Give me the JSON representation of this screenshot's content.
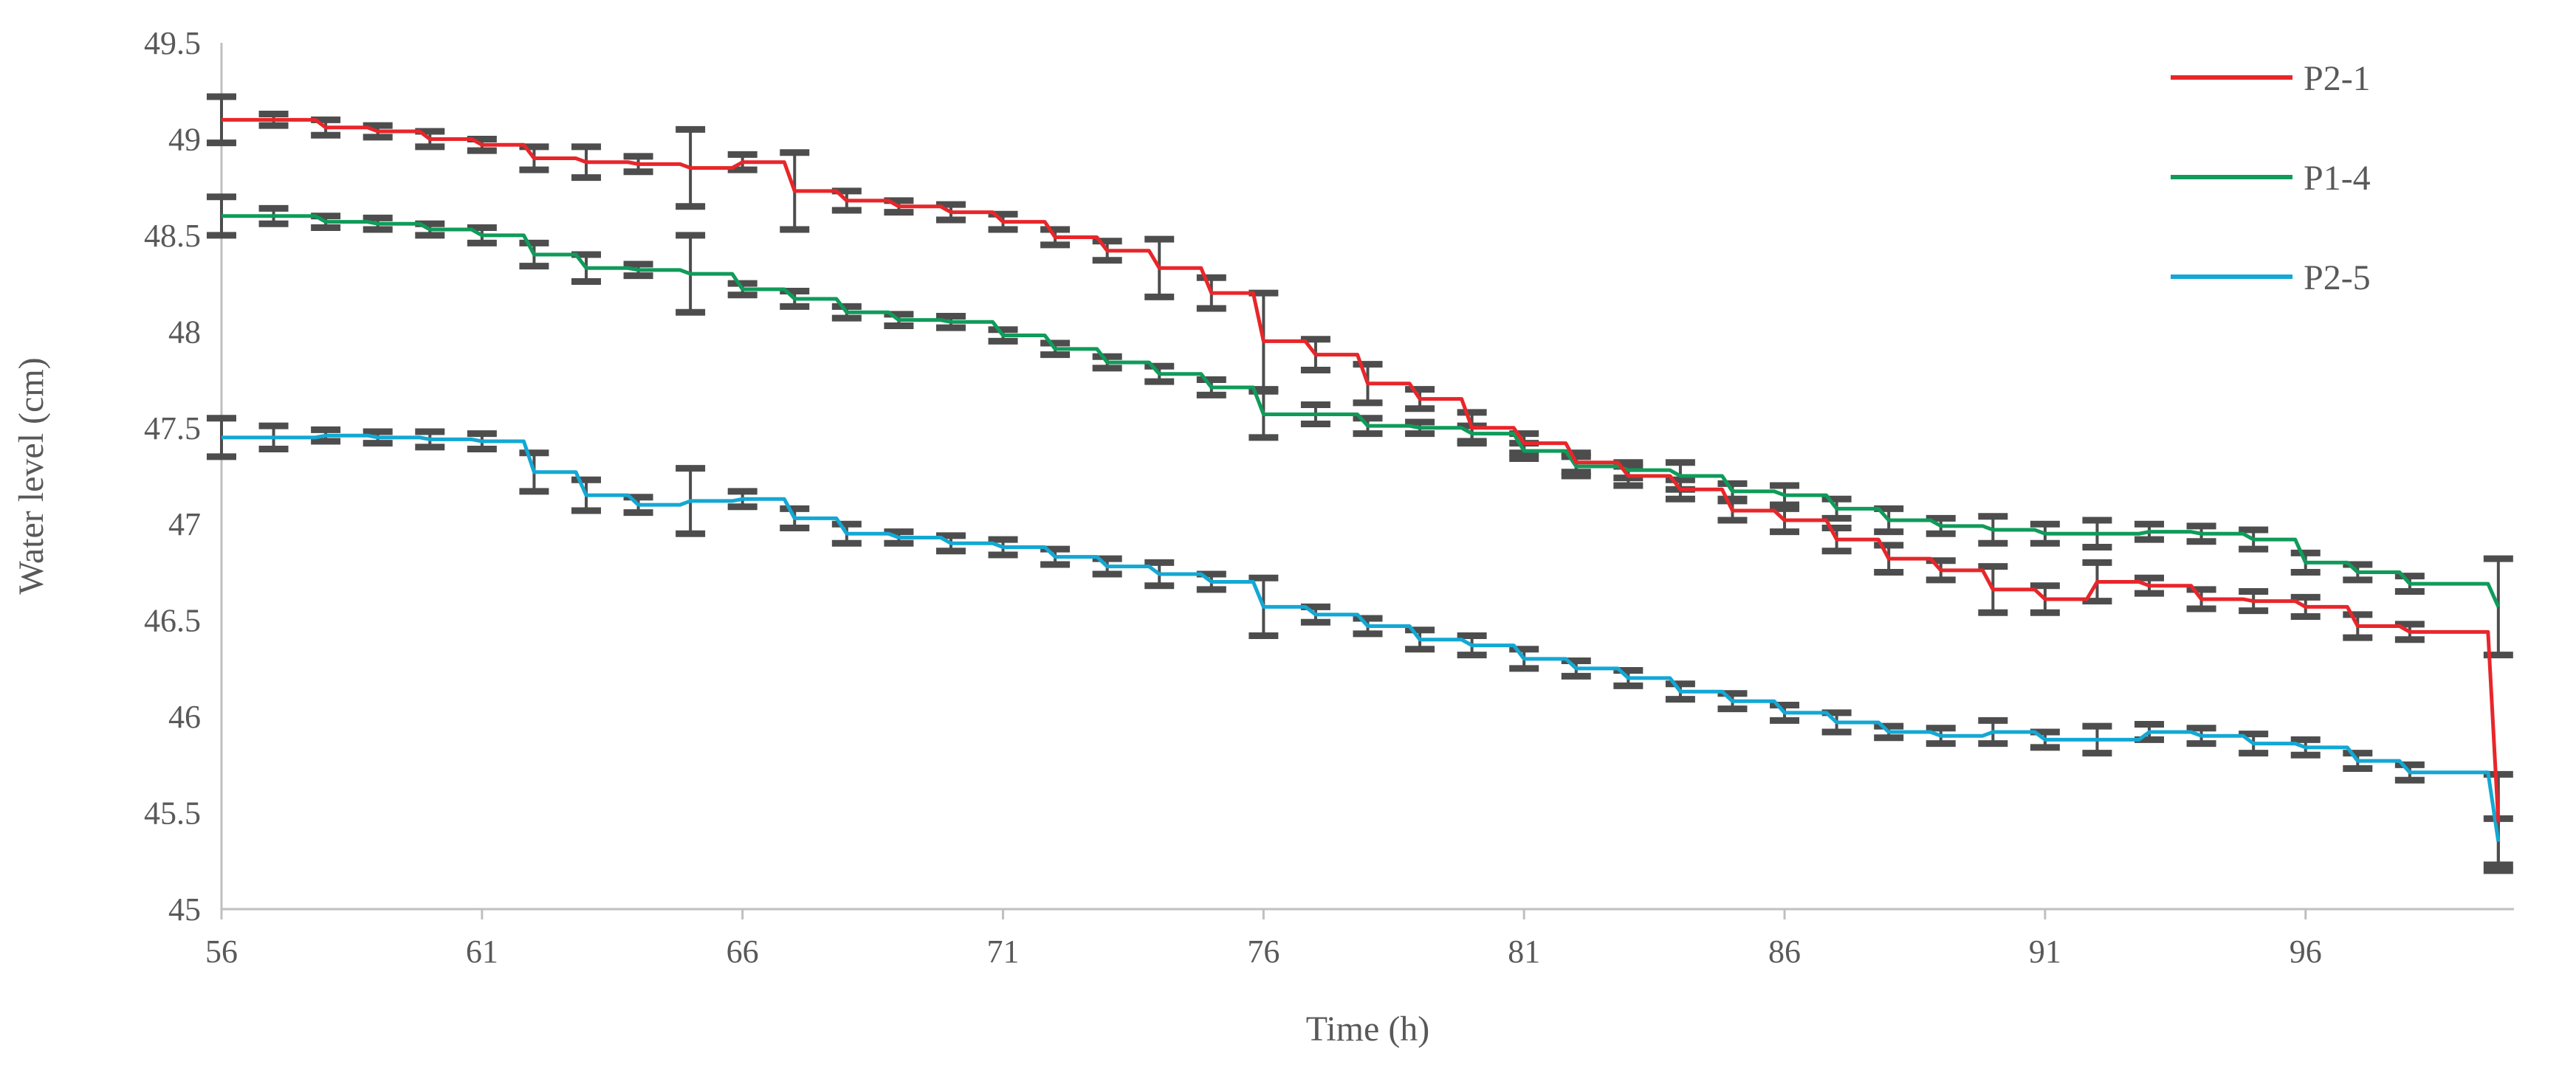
{
  "chart_data": {
    "type": "line",
    "title": "",
    "xlabel": "Time (h)",
    "ylabel": "Water level (cm)",
    "xlim": [
      56,
      100
    ],
    "ylim": [
      45,
      49.5
    ],
    "x_ticks": [
      "56",
      "61",
      "66",
      "71",
      "76",
      "81",
      "86",
      "91",
      "96"
    ],
    "y_ticks": [
      "45",
      "45.5",
      "46",
      "46.5",
      "47",
      "47.5",
      "48",
      "48.5",
      "49",
      "49.5"
    ],
    "grid": false,
    "legend_position": "top-right",
    "step_interpolation": true,
    "error_bars": true,
    "error_bar_color": "#4d4d4d",
    "series": [
      {
        "name": "P2-1",
        "color": "#e8262a",
        "x": [
          56,
          57,
          58,
          59,
          60,
          61,
          62,
          63,
          64,
          65,
          66,
          67,
          68,
          69,
          70,
          71,
          72,
          73,
          74,
          75,
          76,
          77,
          78,
          79,
          80,
          81,
          82,
          83,
          84,
          85,
          86,
          87,
          88,
          89,
          90,
          91,
          92,
          93,
          94,
          95,
          96,
          97,
          98,
          99.7
        ],
        "y": [
          49.1,
          49.1,
          49.06,
          49.04,
          49.0,
          48.97,
          48.9,
          48.88,
          48.87,
          48.85,
          48.88,
          48.73,
          48.68,
          48.65,
          48.62,
          48.57,
          48.49,
          48.42,
          48.33,
          48.2,
          47.95,
          47.88,
          47.73,
          47.65,
          47.5,
          47.42,
          47.32,
          47.25,
          47.18,
          47.07,
          47.02,
          46.92,
          46.82,
          46.76,
          46.66,
          46.61,
          46.7,
          46.68,
          46.61,
          46.6,
          46.57,
          46.47,
          46.44,
          45.45
        ],
        "err": [
          0.12,
          0.03,
          0.04,
          0.03,
          0.04,
          0.03,
          0.06,
          0.08,
          0.04,
          0.2,
          0.04,
          0.2,
          0.05,
          0.03,
          0.04,
          0.04,
          0.04,
          0.05,
          0.15,
          0.08,
          0.25,
          0.08,
          0.1,
          0.05,
          0.08,
          0.05,
          0.05,
          0.05,
          0.05,
          0.05,
          0.06,
          0.06,
          0.07,
          0.05,
          0.12,
          0.07,
          0.1,
          0.04,
          0.05,
          0.05,
          0.05,
          0.06,
          0.04,
          0.25
        ]
      },
      {
        "name": "P1-4",
        "color": "#0f9b5a",
        "x": [
          56,
          57,
          58,
          59,
          60,
          61,
          62,
          63,
          64,
          65,
          66,
          67,
          68,
          69,
          70,
          71,
          72,
          73,
          74,
          75,
          76,
          77,
          78,
          79,
          80,
          81,
          82,
          83,
          84,
          85,
          86,
          87,
          88,
          89,
          90,
          91,
          92,
          93,
          94,
          95,
          96,
          97,
          98,
          99.7
        ],
        "y": [
          48.6,
          48.6,
          48.57,
          48.56,
          48.53,
          48.5,
          48.4,
          48.33,
          48.32,
          48.3,
          48.22,
          48.17,
          48.1,
          48.06,
          48.05,
          47.98,
          47.91,
          47.84,
          47.78,
          47.71,
          47.57,
          47.57,
          47.51,
          47.5,
          47.47,
          47.38,
          47.3,
          47.28,
          47.25,
          47.17,
          47.15,
          47.08,
          47.02,
          46.99,
          46.97,
          46.95,
          46.95,
          46.96,
          46.95,
          46.92,
          46.8,
          46.75,
          46.69,
          46.57
        ],
        "err": [
          0.1,
          0.04,
          0.03,
          0.03,
          0.03,
          0.04,
          0.06,
          0.07,
          0.03,
          0.2,
          0.03,
          0.04,
          0.03,
          0.03,
          0.03,
          0.03,
          0.03,
          0.03,
          0.04,
          0.04,
          0.12,
          0.05,
          0.04,
          0.03,
          0.04,
          0.04,
          0.05,
          0.04,
          0.07,
          0.04,
          0.05,
          0.05,
          0.06,
          0.04,
          0.07,
          0.05,
          0.07,
          0.04,
          0.04,
          0.05,
          0.05,
          0.04,
          0.04,
          0.25
        ]
      },
      {
        "name": "P2-5",
        "color": "#13a8d4",
        "x": [
          56,
          57,
          58,
          59,
          60,
          61,
          62,
          63,
          64,
          65,
          66,
          67,
          68,
          69,
          70,
          71,
          72,
          73,
          74,
          75,
          76,
          77,
          78,
          79,
          80,
          81,
          82,
          83,
          84,
          85,
          86,
          87,
          88,
          89,
          90,
          91,
          92,
          93,
          94,
          95,
          96,
          97,
          98,
          99.7
        ],
        "y": [
          47.45,
          47.45,
          47.46,
          47.45,
          47.44,
          47.43,
          47.27,
          47.15,
          47.1,
          47.12,
          47.13,
          47.03,
          46.95,
          46.93,
          46.9,
          46.88,
          46.83,
          46.78,
          46.74,
          46.7,
          46.57,
          46.53,
          46.47,
          46.4,
          46.37,
          46.3,
          46.25,
          46.2,
          46.13,
          46.08,
          46.02,
          45.97,
          45.92,
          45.9,
          45.92,
          45.88,
          45.88,
          45.92,
          45.9,
          45.86,
          45.84,
          45.77,
          45.71,
          45.35
        ],
        "err": [
          0.1,
          0.06,
          0.03,
          0.03,
          0.04,
          0.04,
          0.1,
          0.08,
          0.04,
          0.17,
          0.04,
          0.05,
          0.05,
          0.03,
          0.04,
          0.04,
          0.04,
          0.04,
          0.06,
          0.04,
          0.15,
          0.04,
          0.04,
          0.05,
          0.05,
          0.05,
          0.04,
          0.04,
          0.04,
          0.04,
          0.04,
          0.05,
          0.03,
          0.04,
          0.06,
          0.04,
          0.07,
          0.04,
          0.04,
          0.05,
          0.04,
          0.04,
          0.04,
          0.12
        ]
      }
    ]
  }
}
